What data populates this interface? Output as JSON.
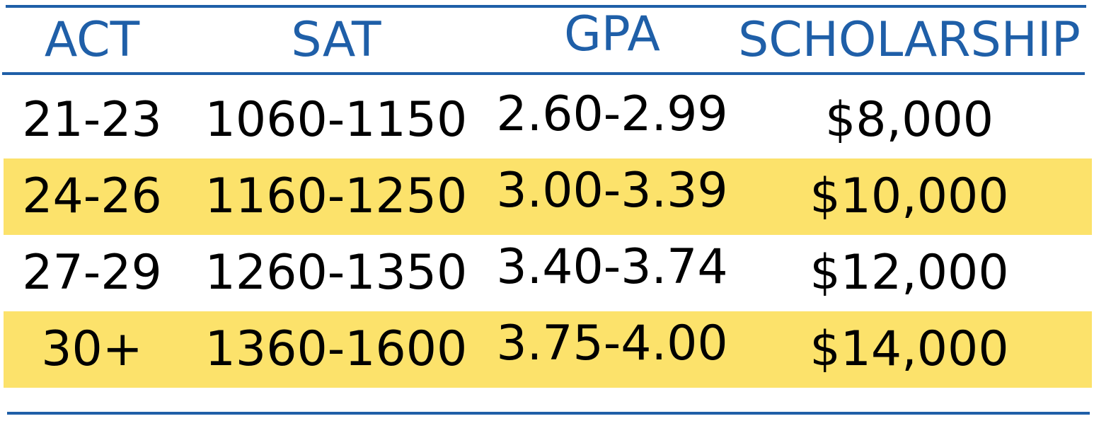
{
  "table": {
    "headers": {
      "act": "ACT",
      "sat": "SAT",
      "gpa": "GPA",
      "scholarship": "SCHOLARSHIP"
    },
    "rows": [
      {
        "act": "21-23",
        "sat": "1060-1150",
        "gpa": "2.60-2.99",
        "scholarship": "$8,000",
        "highlighted": false
      },
      {
        "act": "24-26",
        "sat": "1160-1250",
        "gpa": "3.00-3.39",
        "scholarship": "$10,000",
        "highlighted": true
      },
      {
        "act": "27-29",
        "sat": "1260-1350",
        "gpa": "3.40-3.74",
        "scholarship": "$12,000",
        "highlighted": false
      },
      {
        "act": "30+",
        "sat": "1360-1600",
        "gpa": "3.75-4.00",
        "scholarship": "$14,000",
        "highlighted": true
      }
    ]
  },
  "colors": {
    "header_text": "#1f5fa8",
    "rule": "#1f5fa8",
    "highlight": "#fce26b",
    "body_text": "#000000"
  }
}
